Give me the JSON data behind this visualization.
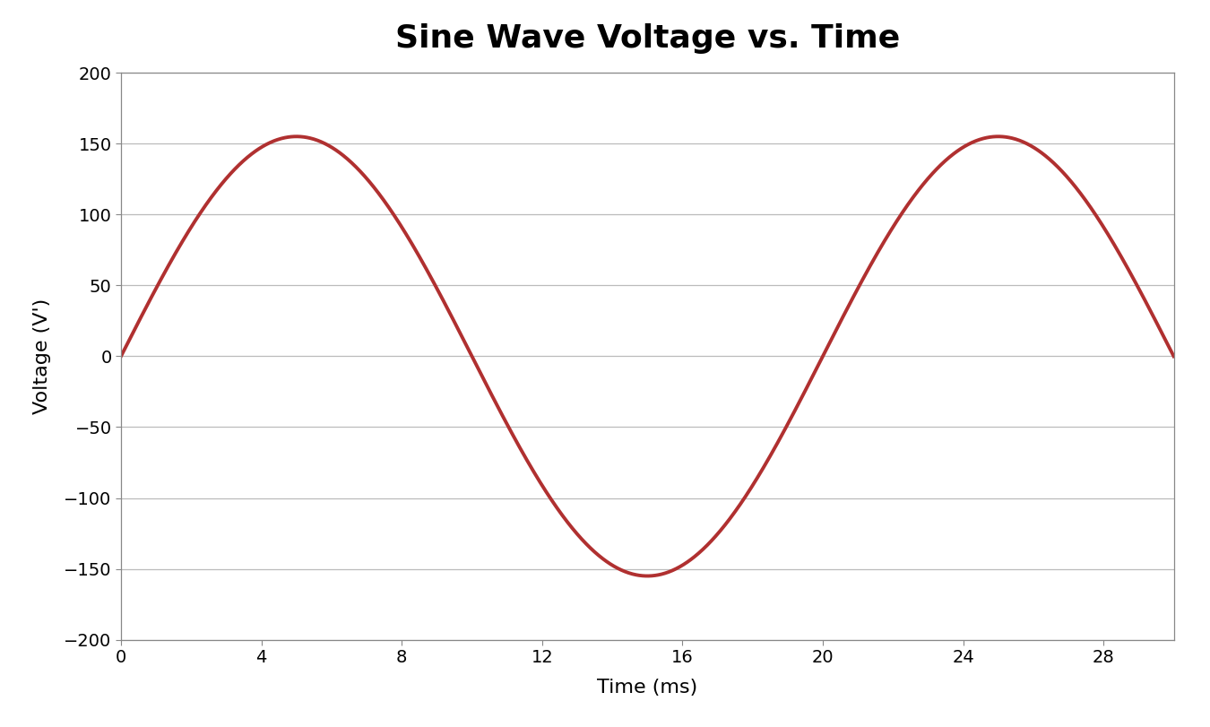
{
  "title": "Sine Wave Voltage vs. Time",
  "xlabel": "Time (ms)",
  "ylabel": "Voltage (V')",
  "amplitude": 155,
  "period_ms": 20,
  "x_start": 0,
  "x_end": 30,
  "xlim": [
    0,
    30
  ],
  "ylim": [
    -200,
    200
  ],
  "xticks": [
    0,
    4,
    8,
    12,
    16,
    20,
    24,
    28
  ],
  "yticks": [
    -200,
    -150,
    -100,
    -50,
    0,
    50,
    100,
    150,
    200
  ],
  "line_color": "#B03030",
  "line_width": 2.8,
  "plot_bg_color": "#FFFFFF",
  "fig_bg_color": "#FFFFFF",
  "grid_color": "#BBBBBB",
  "spine_color": "#888888",
  "title_fontsize": 26,
  "label_fontsize": 16,
  "tick_fontsize": 14,
  "title_fontweight": "bold",
  "title_fontfamily": "DejaVu Sans",
  "tick_fontfamily": "DejaVu Sans"
}
